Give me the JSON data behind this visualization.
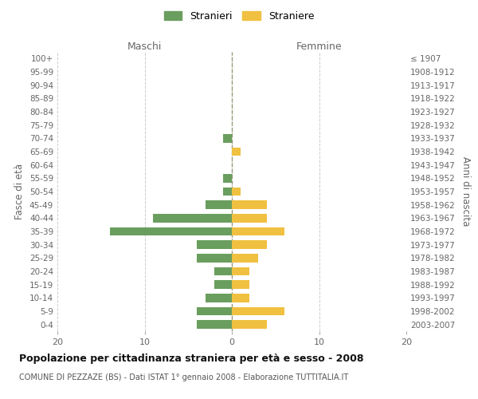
{
  "age_groups": [
    "0-4",
    "5-9",
    "10-14",
    "15-19",
    "20-24",
    "25-29",
    "30-34",
    "35-39",
    "40-44",
    "45-49",
    "50-54",
    "55-59",
    "60-64",
    "65-69",
    "70-74",
    "75-79",
    "80-84",
    "85-89",
    "90-94",
    "95-99",
    "100+"
  ],
  "birth_years": [
    "2003-2007",
    "1998-2002",
    "1993-1997",
    "1988-1992",
    "1983-1987",
    "1978-1982",
    "1973-1977",
    "1968-1972",
    "1963-1967",
    "1958-1962",
    "1953-1957",
    "1948-1952",
    "1943-1947",
    "1938-1942",
    "1933-1937",
    "1928-1932",
    "1923-1927",
    "1918-1922",
    "1913-1917",
    "1908-1912",
    "≤ 1907"
  ],
  "stranieri": [
    4,
    4,
    3,
    2,
    2,
    4,
    4,
    14,
    9,
    3,
    1,
    1,
    0,
    0,
    1,
    0,
    0,
    0,
    0,
    0,
    0
  ],
  "straniere": [
    4,
    6,
    2,
    2,
    2,
    3,
    4,
    6,
    4,
    4,
    1,
    0,
    0,
    1,
    0,
    0,
    0,
    0,
    0,
    0,
    0
  ],
  "color_stranieri": "#6a9e5e",
  "color_straniere": "#f0c040",
  "background_color": "#ffffff",
  "grid_color": "#cccccc",
  "title": "Popolazione per cittadinanza straniera per età e sesso - 2008",
  "subtitle": "COMUNE DI PEZZAZE (BS) - Dati ISTAT 1° gennaio 2008 - Elaborazione TUTTITALIA.IT",
  "xlabel_left": "Maschi",
  "xlabel_right": "Femmine",
  "ylabel_left": "Fasce di età",
  "ylabel_right": "Anni di nascita",
  "xlim": 20,
  "legend_stranieri": "Stranieri",
  "legend_straniere": "Straniere"
}
